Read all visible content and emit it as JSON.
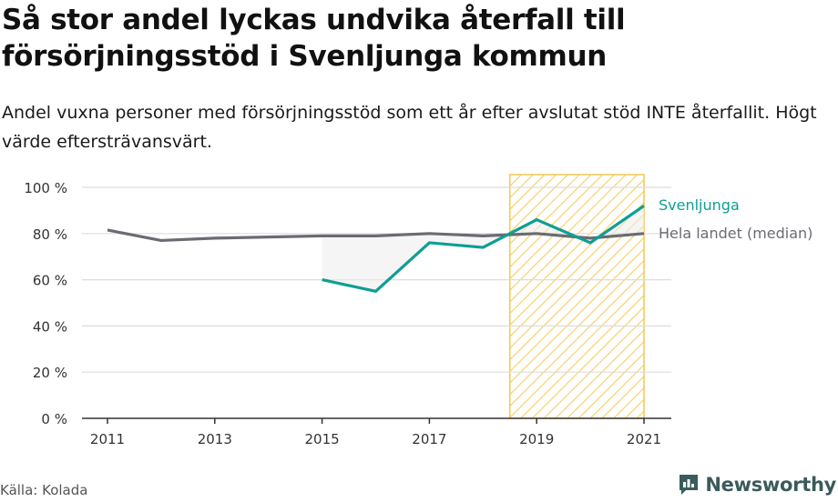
{
  "title": "Så stor andel lyckas undvika återfall till försörjningsstöd i Svenljunga kommun",
  "subtitle": "Andel vuxna personer med försörjningsstöd som ett år efter avslutat stöd INTE återfallit. Högt värde eftersträvansvärt.",
  "source": "Källa: Kolada",
  "brand": "Newsworthy",
  "colors": {
    "svenljunga": "#0e9e94",
    "national": "#6b6b73",
    "highlight": "#f3c94e",
    "grid": "#dddddd",
    "axis": "#333333",
    "brand": "#3b5b5b"
  },
  "chart_data": {
    "type": "line",
    "x": [
      2011,
      2012,
      2013,
      2014,
      2015,
      2016,
      2017,
      2018,
      2019,
      2020,
      2021
    ],
    "x_tick_labels": [
      "2011",
      "2013",
      "2015",
      "2017",
      "2019",
      "2021"
    ],
    "y_tick_labels": [
      "0 %",
      "20 %",
      "40 %",
      "60 %",
      "80 %",
      "100 %"
    ],
    "ylim": [
      0,
      100
    ],
    "xlim": [
      2011,
      2021
    ],
    "highlight_range": [
      2018.5,
      2021
    ],
    "series": [
      {
        "name": "Svenljunga",
        "values": [
          null,
          null,
          null,
          null,
          60,
          55,
          76,
          74,
          86,
          76,
          92
        ]
      },
      {
        "name": "Hela landet (median)",
        "values": [
          81.5,
          77,
          78,
          78.5,
          79,
          79,
          80,
          79,
          80,
          78,
          80
        ]
      }
    ]
  }
}
